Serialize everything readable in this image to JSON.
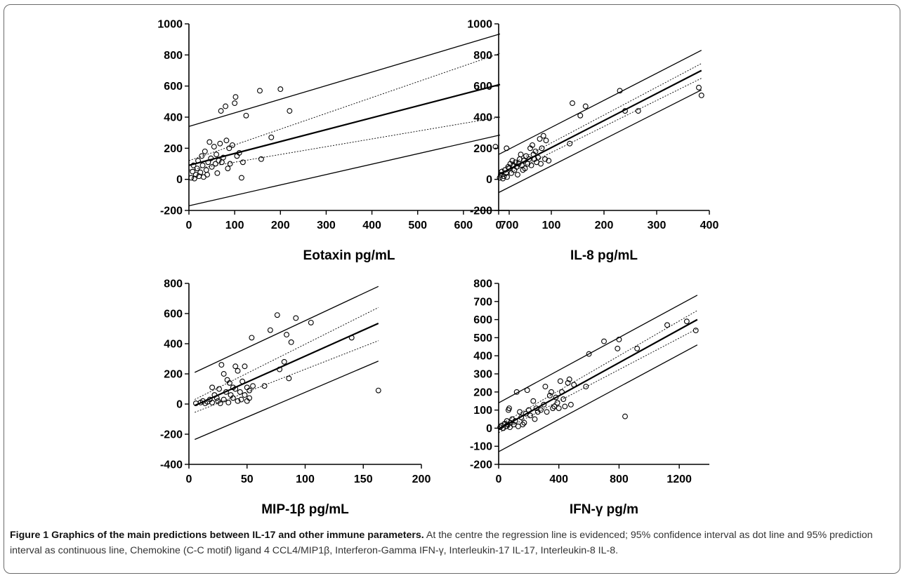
{
  "figure": {
    "caption_title": "Figure 1 Graphics of the main predictions between IL-17 and other immune parameters.",
    "caption_text": " At the centre the regression line is evidenced; 95% confidence interval as dot line and 95% prediction interval as continuous line, Chemokine (C-C motif) ligand 4 CCL4/MIP1β, Interferon-Gamma IFN-γ, Interleukin-17 IL-17, Interleukin-8 IL-8."
  },
  "colors": {
    "ink": "#000000",
    "frame": "#6b6b6b",
    "caption": "#333333"
  },
  "chart_data": [
    {
      "type": "scatter",
      "title": "",
      "xlabel": "Eotaxin pg/mL",
      "ylabel": "",
      "xlim": [
        0,
        700
      ],
      "ylim": [
        -200,
        1000
      ],
      "xticks": [
        0,
        100,
        200,
        300,
        400,
        500,
        600,
        700
      ],
      "yticks": [
        -200,
        0,
        200,
        400,
        600,
        800,
        1000
      ],
      "grid": false,
      "fit": {
        "x_range": [
          0,
          680
        ],
        "regression": [
          90,
          610
        ],
        "ci_upper": [
          120,
          810
        ],
        "ci_lower": [
          60,
          400
        ],
        "pi_upper": [
          340,
          935
        ],
        "pi_lower": [
          -170,
          285
        ]
      },
      "points": [
        [
          5,
          10
        ],
        [
          8,
          50
        ],
        [
          10,
          90
        ],
        [
          12,
          5
        ],
        [
          15,
          30
        ],
        [
          18,
          70
        ],
        [
          20,
          120
        ],
        [
          22,
          20
        ],
        [
          25,
          45
        ],
        [
          28,
          150
        ],
        [
          30,
          90
        ],
        [
          32,
          15
        ],
        [
          35,
          180
        ],
        [
          38,
          60
        ],
        [
          40,
          30
        ],
        [
          42,
          110
        ],
        [
          45,
          240
        ],
        [
          48,
          135
        ],
        [
          50,
          80
        ],
        [
          55,
          210
        ],
        [
          58,
          100
        ],
        [
          60,
          160
        ],
        [
          62,
          40
        ],
        [
          65,
          120
        ],
        [
          68,
          230
        ],
        [
          70,
          440
        ],
        [
          72,
          110
        ],
        [
          75,
          140
        ],
        [
          80,
          470
        ],
        [
          82,
          250
        ],
        [
          85,
          70
        ],
        [
          88,
          200
        ],
        [
          90,
          100
        ],
        [
          95,
          220
        ],
        [
          100,
          490
        ],
        [
          102,
          530
        ],
        [
          105,
          150
        ],
        [
          110,
          170
        ],
        [
          115,
          10
        ],
        [
          118,
          110
        ],
        [
          125,
          410
        ],
        [
          155,
          570
        ],
        [
          158,
          130
        ],
        [
          180,
          270
        ],
        [
          200,
          580
        ],
        [
          220,
          440
        ],
        [
          670,
          210
        ]
      ]
    },
    {
      "type": "scatter",
      "title": "",
      "xlabel": "IL-8 pg/mL",
      "ylabel": "",
      "xlim": [
        0,
        400
      ],
      "ylim": [
        -200,
        1000
      ],
      "xticks": [
        0,
        100,
        200,
        300,
        400
      ],
      "yticks": [
        -200,
        0,
        200,
        400,
        600,
        800,
        1000
      ],
      "grid": false,
      "fit": {
        "x_range": [
          0,
          385
        ],
        "regression": [
          30,
          700
        ],
        "ci_upper": [
          55,
          745
        ],
        "ci_lower": [
          5,
          650
        ],
        "pi_upper": [
          160,
          830
        ],
        "pi_lower": [
          -85,
          575
        ]
      },
      "points": [
        [
          2,
          10
        ],
        [
          4,
          30
        ],
        [
          6,
          50
        ],
        [
          8,
          5
        ],
        [
          10,
          20
        ],
        [
          12,
          60
        ],
        [
          14,
          40
        ],
        [
          15,
          200
        ],
        [
          16,
          15
        ],
        [
          18,
          80
        ],
        [
          20,
          70
        ],
        [
          22,
          100
        ],
        [
          24,
          40
        ],
        [
          26,
          120
        ],
        [
          28,
          90
        ],
        [
          30,
          60
        ],
        [
          32,
          110
        ],
        [
          34,
          80
        ],
        [
          36,
          30
        ],
        [
          38,
          100
        ],
        [
          40,
          130
        ],
        [
          42,
          160
        ],
        [
          44,
          90
        ],
        [
          46,
          60
        ],
        [
          48,
          120
        ],
        [
          50,
          70
        ],
        [
          52,
          150
        ],
        [
          55,
          100
        ],
        [
          58,
          130
        ],
        [
          60,
          200
        ],
        [
          62,
          90
        ],
        [
          64,
          220
        ],
        [
          66,
          160
        ],
        [
          68,
          130
        ],
        [
          70,
          180
        ],
        [
          72,
          110
        ],
        [
          75,
          140
        ],
        [
          78,
          260
        ],
        [
          80,
          100
        ],
        [
          82,
          200
        ],
        [
          85,
          280
        ],
        [
          88,
          130
        ],
        [
          90,
          250
        ],
        [
          95,
          120
        ],
        [
          135,
          230
        ],
        [
          140,
          490
        ],
        [
          155,
          410
        ],
        [
          165,
          470
        ],
        [
          230,
          570
        ],
        [
          240,
          440
        ],
        [
          265,
          440
        ],
        [
          380,
          590
        ],
        [
          385,
          540
        ]
      ]
    },
    {
      "type": "scatter",
      "title": "",
      "xlabel": "MIP-1β pg/mL",
      "ylabel": "",
      "xlim": [
        0,
        200
      ],
      "ylim": [
        -400,
        800
      ],
      "xticks": [
        0,
        50,
        100,
        150,
        200
      ],
      "yticks": [
        -400,
        -200,
        0,
        200,
        400,
        600,
        800
      ],
      "grid": false,
      "fit": {
        "x_range": [
          5,
          163
        ],
        "regression": [
          -10,
          535
        ],
        "ci_upper": [
          30,
          640
        ],
        "ci_lower": [
          -55,
          420
        ],
        "pi_upper": [
          210,
          780
        ],
        "pi_lower": [
          -235,
          285
        ]
      },
      "points": [
        [
          6,
          5
        ],
        [
          10,
          10
        ],
        [
          12,
          20
        ],
        [
          14,
          5
        ],
        [
          16,
          15
        ],
        [
          18,
          30
        ],
        [
          20,
          10
        ],
        [
          20,
          110
        ],
        [
          22,
          60
        ],
        [
          24,
          40
        ],
        [
          25,
          20
        ],
        [
          26,
          100
        ],
        [
          27,
          5
        ],
        [
          28,
          260
        ],
        [
          30,
          30
        ],
        [
          30,
          200
        ],
        [
          32,
          80
        ],
        [
          33,
          160
        ],
        [
          34,
          10
        ],
        [
          35,
          140
        ],
        [
          36,
          60
        ],
        [
          38,
          110
        ],
        [
          38,
          40
        ],
        [
          40,
          250
        ],
        [
          40,
          100
        ],
        [
          42,
          20
        ],
        [
          42,
          220
        ],
        [
          44,
          80
        ],
        [
          45,
          30
        ],
        [
          46,
          150
        ],
        [
          48,
          60
        ],
        [
          48,
          250
        ],
        [
          50,
          20
        ],
        [
          50,
          110
        ],
        [
          52,
          40
        ],
        [
          52,
          90
        ],
        [
          54,
          440
        ],
        [
          55,
          120
        ],
        [
          65,
          120
        ],
        [
          70,
          490
        ],
        [
          76,
          590
        ],
        [
          78,
          230
        ],
        [
          82,
          280
        ],
        [
          84,
          460
        ],
        [
          86,
          170
        ],
        [
          88,
          410
        ],
        [
          92,
          570
        ],
        [
          105,
          540
        ],
        [
          140,
          440
        ],
        [
          163,
          90
        ]
      ]
    },
    {
      "type": "scatter",
      "title": "",
      "xlabel": "IFN-γ pg/m",
      "ylabel": "",
      "xlim": [
        0,
        1400
      ],
      "ylim": [
        -200,
        800
      ],
      "xticks": [
        0,
        400,
        800,
        1200
      ],
      "yticks": [
        -200,
        -100,
        0,
        100,
        200,
        300,
        400,
        500,
        600,
        700,
        800
      ],
      "grid": false,
      "fit": {
        "x_range": [
          0,
          1320
        ],
        "regression": [
          -5,
          600
        ],
        "ci_upper": [
          15,
          650
        ],
        "ci_lower": [
          -25,
          550
        ],
        "pi_upper": [
          140,
          735
        ],
        "pi_lower": [
          -130,
          460
        ]
      },
      "points": [
        [
          10,
          5
        ],
        [
          20,
          15
        ],
        [
          30,
          0
        ],
        [
          40,
          25
        ],
        [
          50,
          10
        ],
        [
          55,
          40
        ],
        [
          60,
          20
        ],
        [
          65,
          100
        ],
        [
          70,
          110
        ],
        [
          75,
          5
        ],
        [
          80,
          30
        ],
        [
          90,
          50
        ],
        [
          100,
          20
        ],
        [
          110,
          40
        ],
        [
          120,
          200
        ],
        [
          130,
          10
        ],
        [
          140,
          90
        ],
        [
          150,
          60
        ],
        [
          160,
          20
        ],
        [
          170,
          30
        ],
        [
          180,
          80
        ],
        [
          190,
          210
        ],
        [
          200,
          100
        ],
        [
          210,
          70
        ],
        [
          230,
          150
        ],
        [
          240,
          50
        ],
        [
          250,
          110
        ],
        [
          260,
          90
        ],
        [
          280,
          100
        ],
        [
          300,
          130
        ],
        [
          310,
          230
        ],
        [
          320,
          90
        ],
        [
          340,
          180
        ],
        [
          350,
          200
        ],
        [
          360,
          110
        ],
        [
          370,
          120
        ],
        [
          380,
          170
        ],
        [
          390,
          140
        ],
        [
          400,
          110
        ],
        [
          410,
          260
        ],
        [
          420,
          200
        ],
        [
          430,
          160
        ],
        [
          440,
          120
        ],
        [
          460,
          250
        ],
        [
          470,
          270
        ],
        [
          480,
          130
        ],
        [
          500,
          240
        ],
        [
          580,
          230
        ],
        [
          600,
          410
        ],
        [
          700,
          480
        ],
        [
          790,
          440
        ],
        [
          800,
          490
        ],
        [
          840,
          65
        ],
        [
          920,
          440
        ],
        [
          1120,
          570
        ],
        [
          1250,
          590
        ],
        [
          1310,
          540
        ]
      ]
    }
  ]
}
